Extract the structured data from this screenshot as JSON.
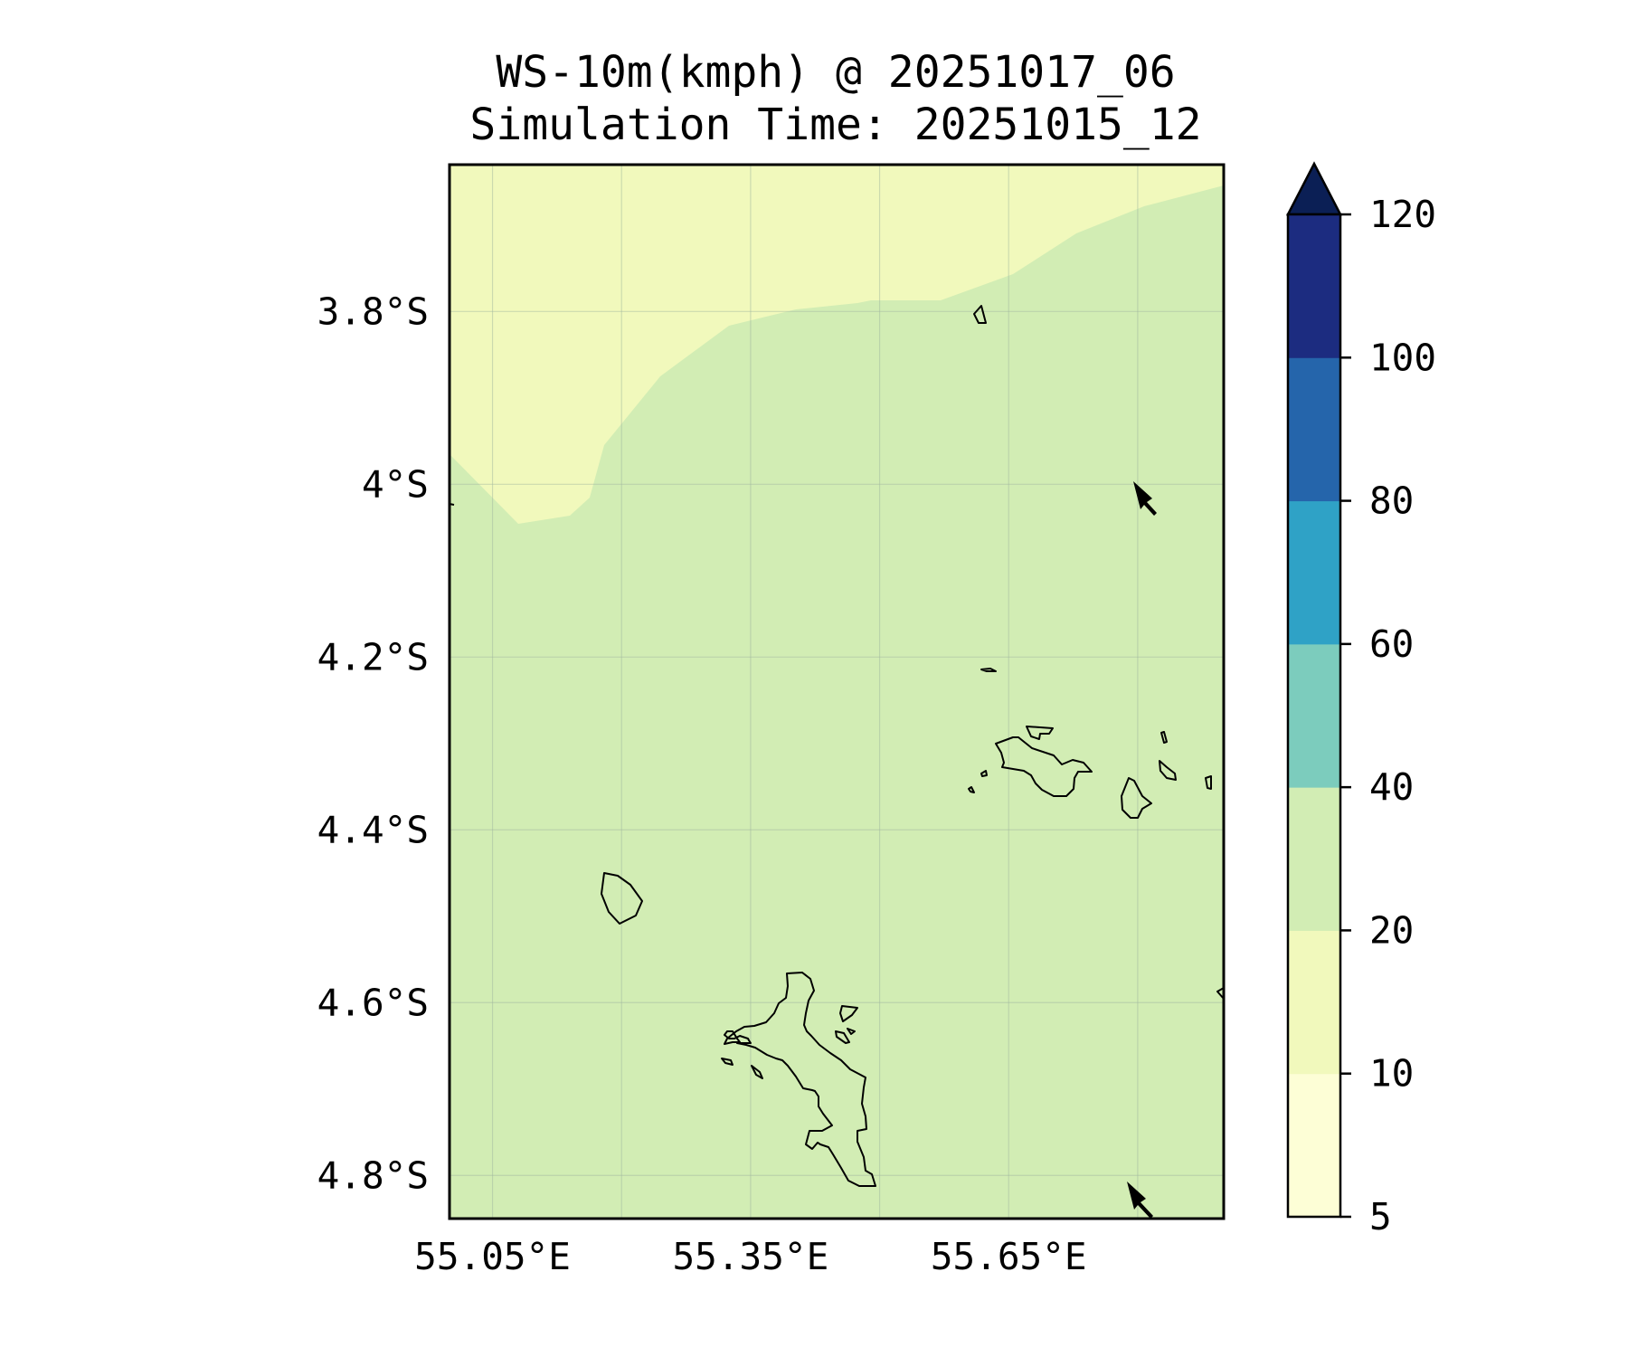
{
  "map": {
    "title_line1": "WS-10m(kmph) @ 20251017_06",
    "title_line2": "Simulation Time: 20251015_12",
    "extent": {
      "lon": [
        55.0,
        55.9
      ],
      "lat": [
        -4.85,
        -3.63
      ]
    },
    "lat_ticks": [
      {
        "value": -3.8,
        "label": "3.8°S"
      },
      {
        "value": -4.0,
        "label": "4°S"
      },
      {
        "value": -4.2,
        "label": "4.2°S"
      },
      {
        "value": -4.4,
        "label": "4.4°S"
      },
      {
        "value": -4.6,
        "label": "4.6°S"
      },
      {
        "value": -4.8,
        "label": "4.8°S"
      }
    ],
    "lon_ticks": [
      {
        "value": 55.05,
        "label": "55.05°E"
      },
      {
        "value": 55.35,
        "label": "55.35°E"
      },
      {
        "value": 55.65,
        "label": "55.65°E"
      }
    ],
    "regions": [
      {
        "name": "10-20 kmph",
        "color": "#f1f9bc"
      },
      {
        "name": "20-40 kmph",
        "color": "#d2edb4"
      }
    ],
    "wind_arrows": [
      {
        "lon": 55.84,
        "lat": -4.04,
        "direction": "north-west"
      },
      {
        "lon": 55.83,
        "lat": -4.85,
        "direction": "north-west"
      }
    ],
    "grid": true,
    "coastlines": true
  },
  "colorbar": {
    "levels": [
      "5",
      "10",
      "20",
      "40",
      "60",
      "80",
      "100",
      "120"
    ],
    "colors": [
      "#fdfed6",
      "#f1f9bc",
      "#d2edb4",
      "#7cccbd",
      "#2fa2c6",
      "#2565ab",
      "#1c2c80"
    ],
    "extend_color": "#0b1f55",
    "extend": "max"
  }
}
